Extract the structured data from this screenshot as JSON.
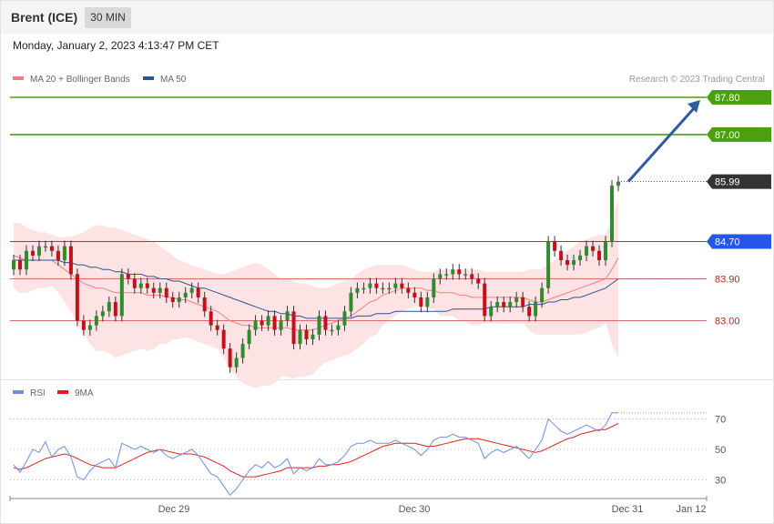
{
  "header": {
    "title": "Brent (ICE)",
    "timeframe": "30 MIN"
  },
  "timestamp": "Monday, January 2, 2023 4:13:47 PM CET",
  "legend": {
    "ma20": "MA 20 + Bollinger Bands",
    "ma50": "MA 50",
    "credit": "Research © 2023 Trading Central",
    "rsi": "RSI",
    "ma9": "9MA"
  },
  "colors": {
    "ma20": "#f08080",
    "ma50": "#2f5597",
    "band_fill": "#fde3e3",
    "up": "#2e8b2e",
    "down": "#c0121b",
    "target": "#4aa010",
    "pivot": "#2456e8",
    "support": "#e06a6a",
    "rsi": "#6e8fdc",
    "rsi_ma": "#e02020",
    "arrow": "#2d5aa0",
    "last_price": "#333333"
  },
  "chart_data": [
    {
      "type": "line",
      "title": "",
      "subtitle": "",
      "chart_type_detail": "candlestick with MA 20, Bollinger Bands, MA 50",
      "x_ticks": [
        "Dec 29",
        "Dec 30",
        "Dec 31",
        "Jan 12"
      ],
      "ylim": [
        81.3,
        88.0
      ],
      "levels": [
        {
          "value": 87.8,
          "label": "87.80",
          "kind": "target"
        },
        {
          "value": 87.0,
          "label": "87.00",
          "kind": "target"
        },
        {
          "value": 85.99,
          "label": "85.99",
          "kind": "last_price"
        },
        {
          "value": 84.7,
          "label": "84.70",
          "kind": "pivot"
        },
        {
          "value": 83.9,
          "label": "83.90",
          "kind": "support"
        },
        {
          "value": 83.0,
          "label": "83.00",
          "kind": "support"
        }
      ],
      "projection": {
        "from": 85.99,
        "to": 87.8
      },
      "close": [
        84.3,
        84.1,
        84.5,
        84.4,
        84.6,
        84.6,
        84.5,
        84.3,
        84.6,
        84.0,
        83.0,
        82.8,
        82.9,
        83.1,
        83.2,
        83.4,
        83.1,
        84.0,
        83.9,
        83.7,
        83.8,
        83.7,
        83.6,
        83.7,
        83.5,
        83.4,
        83.5,
        83.6,
        83.7,
        83.5,
        83.2,
        82.9,
        82.8,
        82.4,
        82.0,
        82.2,
        82.5,
        82.8,
        83.0,
        82.9,
        83.1,
        82.8,
        83.0,
        83.2,
        82.5,
        82.8,
        82.6,
        82.7,
        83.1,
        82.8,
        82.8,
        82.9,
        83.2,
        83.6,
        83.7,
        83.7,
        83.8,
        83.7,
        83.7,
        83.7,
        83.8,
        83.7,
        83.6,
        83.5,
        83.3,
        83.5,
        83.9,
        84.0,
        84.0,
        84.1,
        84.0,
        84.0,
        83.9,
        83.8,
        83.1,
        83.3,
        83.4,
        83.3,
        83.4,
        83.5,
        83.3,
        83.1,
        83.4,
        83.7,
        84.7,
        84.5,
        84.3,
        84.2,
        84.3,
        84.4,
        84.6,
        84.5,
        84.3,
        84.7,
        85.9,
        85.99
      ],
      "ma20_bb": {
        "ma": [
          84.4,
          84.35,
          84.3,
          84.3,
          84.3,
          84.3,
          84.3,
          84.2,
          84.1,
          84.0,
          83.9,
          83.8,
          83.75,
          83.7,
          83.7,
          83.65,
          83.6,
          83.6,
          83.6,
          83.6,
          83.6,
          83.55,
          83.55,
          83.55,
          83.5,
          83.5,
          83.45,
          83.45,
          83.4,
          83.35,
          83.3,
          83.25,
          83.2,
          83.1,
          83.0,
          82.95,
          82.9,
          82.9,
          82.85,
          82.85,
          82.85,
          82.85,
          82.85,
          82.85,
          82.8,
          82.8,
          82.8,
          82.8,
          82.85,
          82.9,
          82.95,
          83.0,
          83.05,
          83.1,
          83.2,
          83.3,
          83.4,
          83.45,
          83.55,
          83.6,
          83.65,
          83.7,
          83.7,
          83.7,
          83.7,
          83.65,
          83.65,
          83.6,
          83.6,
          83.6,
          83.55,
          83.55,
          83.5,
          83.5,
          83.5,
          83.5,
          83.5,
          83.5,
          83.5,
          83.5,
          83.5,
          83.45,
          83.4,
          83.4,
          83.45,
          83.5,
          83.55,
          83.6,
          83.65,
          83.7,
          83.75,
          83.8,
          83.85,
          83.9,
          84.1,
          84.35
        ],
        "upper": [
          85.1,
          85.1,
          85.0,
          84.95,
          84.9,
          84.9,
          84.85,
          84.8,
          84.8,
          84.8,
          84.85,
          84.9,
          85.0,
          85.05,
          85.05,
          85.0,
          85.0,
          84.95,
          84.9,
          84.85,
          84.8,
          84.75,
          84.7,
          84.6,
          84.5,
          84.4,
          84.3,
          84.25,
          84.2,
          84.15,
          84.1,
          84.05,
          84.0,
          84.0,
          84.05,
          84.1,
          84.15,
          84.2,
          84.25,
          84.2,
          84.1,
          84.0,
          83.9,
          83.9,
          83.85,
          83.8,
          83.8,
          83.75,
          83.7,
          83.7,
          83.75,
          83.8,
          83.85,
          83.9,
          84.0,
          84.1,
          84.15,
          84.2,
          84.2,
          84.2,
          84.2,
          84.2,
          84.15,
          84.1,
          84.05,
          84.05,
          84.05,
          84.1,
          84.1,
          84.1,
          84.1,
          84.1,
          84.1,
          84.1,
          84.05,
          84.05,
          84.05,
          84.05,
          84.05,
          84.05,
          84.05,
          84.1,
          84.1,
          84.1,
          84.2,
          84.3,
          84.4,
          84.5,
          84.6,
          84.7,
          84.75,
          84.8,
          84.85,
          84.85,
          85.2,
          85.6
        ],
        "lower": [
          83.7,
          83.6,
          83.6,
          83.65,
          83.7,
          83.7,
          83.75,
          83.6,
          83.4,
          83.2,
          82.95,
          82.7,
          82.5,
          82.35,
          82.35,
          82.3,
          82.2,
          82.25,
          82.3,
          82.35,
          82.4,
          82.35,
          82.4,
          82.5,
          82.5,
          82.6,
          82.6,
          82.65,
          82.6,
          82.55,
          82.5,
          82.45,
          82.4,
          82.2,
          81.95,
          81.8,
          81.65,
          81.6,
          81.55,
          81.6,
          81.6,
          81.65,
          81.8,
          81.8,
          81.75,
          81.8,
          81.8,
          81.85,
          82.0,
          82.1,
          82.15,
          82.2,
          82.25,
          82.3,
          82.4,
          82.5,
          82.65,
          82.7,
          82.9,
          83.0,
          83.1,
          83.2,
          83.25,
          83.3,
          83.35,
          83.25,
          83.25,
          83.1,
          83.1,
          83.1,
          83.0,
          83.0,
          82.9,
          82.9,
          82.95,
          82.95,
          82.95,
          82.95,
          82.95,
          82.95,
          82.95,
          82.8,
          82.7,
          82.7,
          82.7,
          82.7,
          82.7,
          82.7,
          82.7,
          82.7,
          82.75,
          82.8,
          82.85,
          82.95,
          82.5,
          82.2
        ]
      },
      "ma50": [
        84.3,
        84.3,
        84.3,
        84.3,
        84.3,
        84.3,
        84.3,
        84.3,
        84.25,
        84.25,
        84.2,
        84.2,
        84.15,
        84.15,
        84.1,
        84.1,
        84.05,
        84.05,
        84.0,
        84.0,
        84.0,
        83.95,
        83.95,
        83.9,
        83.9,
        83.85,
        83.85,
        83.8,
        83.75,
        83.7,
        83.7,
        83.65,
        83.6,
        83.55,
        83.5,
        83.45,
        83.4,
        83.35,
        83.3,
        83.25,
        83.2,
        83.2,
        83.15,
        83.15,
        83.1,
        83.1,
        83.05,
        83.05,
        83.05,
        83.05,
        83.05,
        83.05,
        83.05,
        83.05,
        83.1,
        83.1,
        83.1,
        83.15,
        83.15,
        83.15,
        83.2,
        83.2,
        83.2,
        83.2,
        83.2,
        83.2,
        83.2,
        83.2,
        83.2,
        83.25,
        83.25,
        83.25,
        83.25,
        83.25,
        83.25,
        83.3,
        83.3,
        83.3,
        83.3,
        83.3,
        83.3,
        83.35,
        83.35,
        83.35,
        83.4,
        83.4,
        83.45,
        83.45,
        83.5,
        83.5,
        83.55,
        83.6,
        83.65,
        83.7,
        83.8,
        83.9
      ]
    },
    {
      "type": "line",
      "title": "",
      "ylim": [
        20,
        80
      ],
      "y_ticks": [
        30,
        50,
        70
      ],
      "series": [
        {
          "name": "RSI",
          "values": [
            40,
            35,
            42,
            50,
            48,
            55,
            45,
            50,
            52,
            45,
            32,
            30,
            36,
            40,
            42,
            44,
            38,
            54,
            52,
            50,
            52,
            50,
            48,
            50,
            46,
            44,
            46,
            48,
            50,
            46,
            40,
            34,
            32,
            26,
            20,
            24,
            30,
            36,
            40,
            38,
            42,
            38,
            40,
            44,
            34,
            38,
            36,
            38,
            44,
            40,
            40,
            42,
            46,
            52,
            54,
            54,
            56,
            54,
            54,
            54,
            56,
            54,
            52,
            50,
            46,
            50,
            56,
            58,
            58,
            60,
            58,
            58,
            56,
            54,
            44,
            48,
            50,
            48,
            50,
            52,
            48,
            44,
            50,
            56,
            70,
            66,
            62,
            60,
            62,
            64,
            66,
            64,
            62,
            66,
            74,
            74
          ]
        },
        {
          "name": "9MA",
          "values": [
            38,
            37,
            38,
            40,
            42,
            44,
            45,
            46,
            47,
            46,
            44,
            42,
            40,
            39,
            38,
            38,
            38,
            40,
            42,
            44,
            46,
            48,
            49,
            50,
            49,
            48,
            47,
            47,
            47,
            46,
            45,
            43,
            41,
            39,
            36,
            34,
            32,
            32,
            32,
            33,
            34,
            35,
            36,
            38,
            38,
            38,
            38,
            38,
            39,
            39,
            40,
            40,
            41,
            42,
            44,
            46,
            48,
            50,
            52,
            53,
            54,
            54,
            54,
            54,
            53,
            52,
            52,
            53,
            54,
            55,
            56,
            57,
            57,
            57,
            56,
            55,
            54,
            53,
            52,
            51,
            50,
            49,
            48,
            49,
            51,
            53,
            55,
            57,
            58,
            60,
            61,
            62,
            63,
            63,
            65,
            67
          ]
        }
      ]
    }
  ]
}
